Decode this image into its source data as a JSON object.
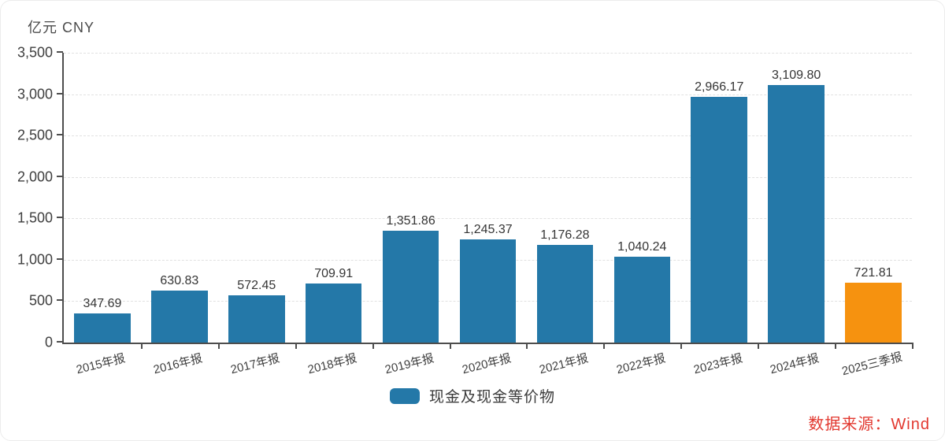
{
  "unit_label": "亿元 CNY",
  "source_label": "数据来源：Wind",
  "colors": {
    "bar": "#2478a8",
    "highlight": "#f6920f",
    "axis": "#4d4d4d",
    "grid": "#e1e1e1",
    "text": "#3f3f3f",
    "source": "#e2382f"
  },
  "chart_data": {
    "type": "bar",
    "title": "",
    "xlabel": "",
    "ylabel": "亿元 CNY",
    "categories": [
      "2015年报",
      "2016年报",
      "2017年报",
      "2018年报",
      "2019年报",
      "2020年报",
      "2021年报",
      "2022年报",
      "2023年报",
      "2024年报",
      "2025三季报"
    ],
    "values": [
      347.69,
      630.83,
      572.45,
      709.91,
      1351.86,
      1245.37,
      1176.28,
      1040.24,
      2966.17,
      3109.8,
      721.81
    ],
    "value_labels": [
      "347.69",
      "630.83",
      "572.45",
      "709.91",
      "1,351.86",
      "1,245.37",
      "1,176.28",
      "1,040.24",
      "2,966.17",
      "3,109.80",
      "721.81"
    ],
    "highlight_index": 10,
    "legend": [
      "现金及现金等价物"
    ],
    "legend_position": "bottom center",
    "ylim": [
      0,
      3500
    ],
    "yticks": [
      0,
      500,
      1000,
      1500,
      2000,
      2500,
      3000,
      3500
    ],
    "grid": "dashed horizontal gridlines at each y tick"
  }
}
